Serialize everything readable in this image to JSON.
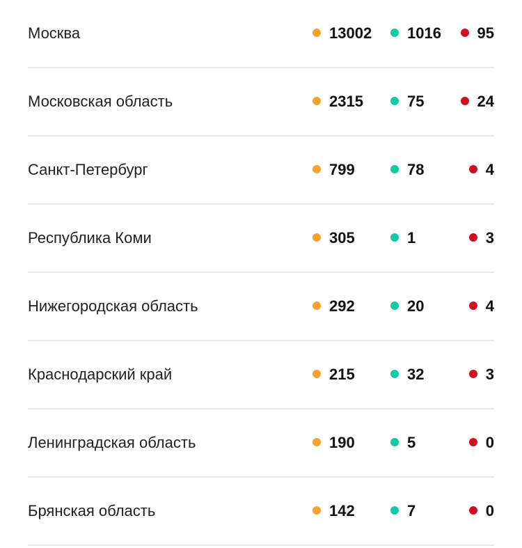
{
  "colors": {
    "cases": "#f5a32d",
    "recovered": "#12c9a6",
    "deaths": "#d11120"
  },
  "rows": [
    {
      "region": "Москва",
      "cases": "13002",
      "recovered": "1016",
      "deaths": "95"
    },
    {
      "region": "Московская область",
      "cases": "2315",
      "recovered": "75",
      "deaths": "24"
    },
    {
      "region": "Санкт-Петербург",
      "cases": "799",
      "recovered": "78",
      "deaths": "4"
    },
    {
      "region": "Республика Коми",
      "cases": "305",
      "recovered": "1",
      "deaths": "3"
    },
    {
      "region": "Нижегородская область",
      "cases": "292",
      "recovered": "20",
      "deaths": "4"
    },
    {
      "region": "Краснодарский край",
      "cases": "215",
      "recovered": "32",
      "deaths": "3"
    },
    {
      "region": "Ленинградская область",
      "cases": "190",
      "recovered": "5",
      "deaths": "0"
    },
    {
      "region": "Брянская область",
      "cases": "142",
      "recovered": "7",
      "deaths": "0"
    }
  ]
}
